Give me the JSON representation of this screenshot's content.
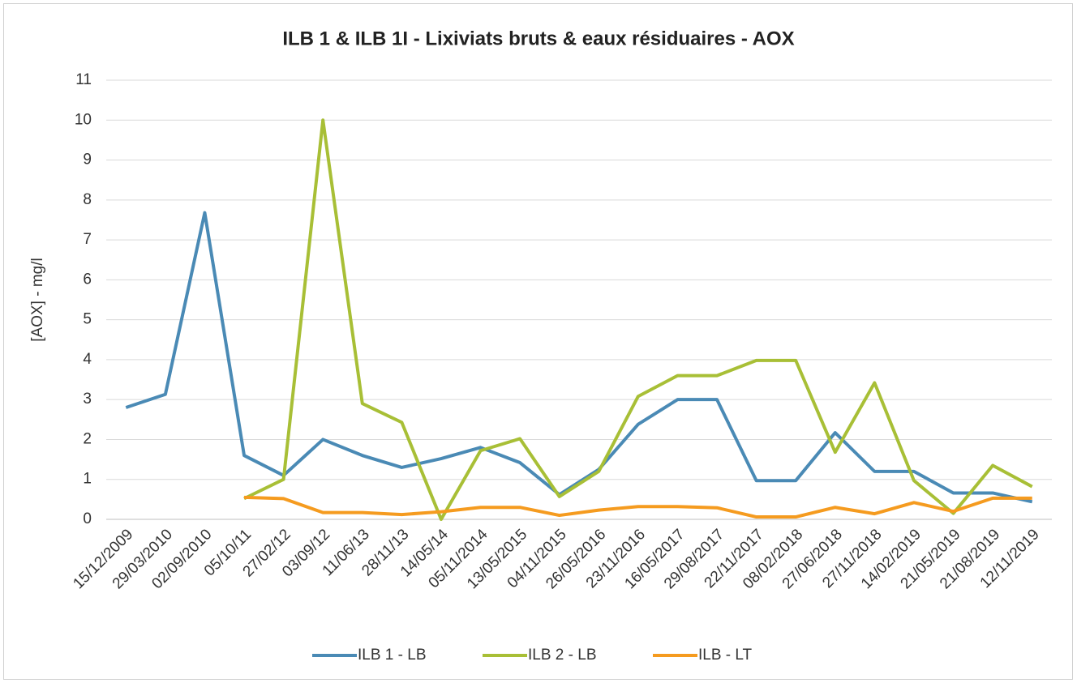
{
  "chart_data": {
    "type": "line",
    "title": "ILB 1 & ILB 1I - Lixiviats bruts & eaux résiduaires - AOX",
    "y_label": "[AOX] - mg/l",
    "categories": [
      "15/12/2009",
      "29/03/2010",
      "02/09/2010",
      "05/10/11",
      "27/02/12",
      "03/09/12",
      "11/06/13",
      "28/11/13",
      "14/05/14",
      "05/11/2014",
      "13/05/2015",
      "04/11/2015",
      "26/05/2016",
      "23/11/2016",
      "16/05/2017",
      "29/08/2017",
      "22/11/2017",
      "08/02/2018",
      "27/06/2018",
      "27/11/2018",
      "14/02/2019",
      "21/05/2019",
      "21/08/2019",
      "12/11/2019"
    ],
    "series": [
      {
        "name": "ILB 1 - LB",
        "color": "#4a8ab5",
        "values": [
          2.8,
          3.13,
          7.68,
          1.6,
          1.1,
          2.0,
          1.6,
          1.3,
          1.52,
          1.8,
          1.42,
          0.62,
          1.25,
          2.38,
          3.0,
          3.0,
          0.97,
          0.97,
          2.17,
          1.2,
          1.2,
          0.66,
          0.66,
          0.44
        ]
      },
      {
        "name": "ILB 2 - LB",
        "color": "#a8bf36",
        "values": [
          null,
          null,
          null,
          0.52,
          1.0,
          10.0,
          2.9,
          2.43,
          0.0,
          1.72,
          2.02,
          0.57,
          1.2,
          3.08,
          3.6,
          3.6,
          3.98,
          3.98,
          1.68,
          3.42,
          0.97,
          0.15,
          1.35,
          0.82
        ]
      },
      {
        "name": "ILB - LT",
        "color": "#f59b1f",
        "values": [
          null,
          null,
          null,
          0.55,
          0.52,
          0.17,
          0.17,
          0.12,
          0.19,
          0.3,
          0.3,
          0.1,
          0.23,
          0.32,
          0.32,
          0.29,
          0.06,
          0.06,
          0.3,
          0.14,
          0.42,
          0.2,
          0.53,
          0.53
        ]
      }
    ],
    "ylim": [
      0,
      11
    ],
    "yticks": [
      0,
      1,
      2,
      3,
      4,
      5,
      6,
      7,
      8,
      9,
      10,
      11
    ],
    "grid": true,
    "legend": "bottom"
  }
}
